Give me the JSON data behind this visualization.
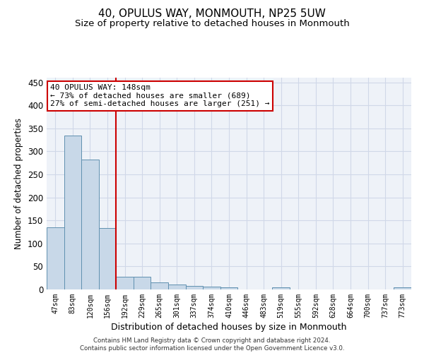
{
  "title": "40, OPULUS WAY, MONMOUTH, NP25 5UW",
  "subtitle": "Size of property relative to detached houses in Monmouth",
  "xlabel": "Distribution of detached houses by size in Monmouth",
  "ylabel": "Number of detached properties",
  "categories": [
    "47sqm",
    "83sqm",
    "120sqm",
    "156sqm",
    "192sqm",
    "229sqm",
    "265sqm",
    "301sqm",
    "337sqm",
    "374sqm",
    "410sqm",
    "446sqm",
    "483sqm",
    "519sqm",
    "555sqm",
    "592sqm",
    "628sqm",
    "664sqm",
    "700sqm",
    "737sqm",
    "773sqm"
  ],
  "values": [
    135,
    335,
    282,
    133,
    27,
    27,
    15,
    11,
    8,
    6,
    5,
    0,
    0,
    4,
    0,
    0,
    0,
    0,
    0,
    0,
    4
  ],
  "bar_color": "#c8d8e8",
  "bar_edge_color": "#6090b0",
  "vline_x_index": 3,
  "vline_color": "#cc0000",
  "annotation_box_text": "40 OPULUS WAY: 148sqm\n← 73% of detached houses are smaller (689)\n27% of semi-detached houses are larger (251) →",
  "box_edge_color": "#cc0000",
  "ylim": [
    0,
    460
  ],
  "yticks": [
    0,
    50,
    100,
    150,
    200,
    250,
    300,
    350,
    400,
    450
  ],
  "grid_color": "#d0d8e8",
  "background_color": "#eef2f8",
  "footer_text": "Contains HM Land Registry data © Crown copyright and database right 2024.\nContains public sector information licensed under the Open Government Licence v3.0.",
  "title_fontsize": 11,
  "subtitle_fontsize": 9.5,
  "xlabel_fontsize": 9,
  "ylabel_fontsize": 8.5
}
